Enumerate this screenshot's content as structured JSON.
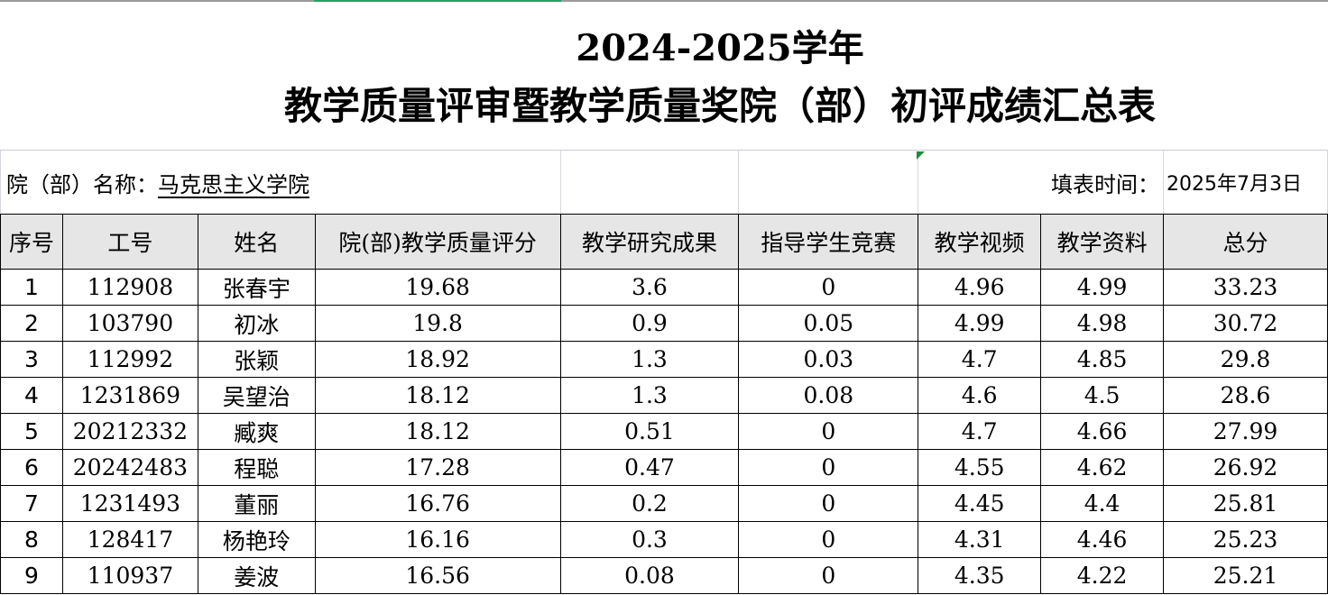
{
  "title_line1": "2024-2025学年",
  "title_line2": "教学质量评审暨教学质量奖院（部）初评成绩汇总表",
  "info": {
    "dept_label": "院（部）名称：",
    "dept_name": "马克思主义学院",
    "date_label": "填表时间：",
    "date_value": "2025年7月3日"
  },
  "headers": [
    "序号",
    "工号",
    "姓名",
    "院(部)教学质量评分",
    "教学研究成果",
    "指导学生竞赛",
    "教学视频",
    "教学资料",
    "总分"
  ],
  "rows": [
    [
      "1",
      "112908",
      "张春宇",
      "19.68",
      "3.6",
      "0",
      "4.96",
      "4.99",
      "33.23"
    ],
    [
      "2",
      "103790",
      "初冰",
      "19.8",
      "0.9",
      "0.05",
      "4.99",
      "4.98",
      "30.72"
    ],
    [
      "3",
      "112992",
      "张颖",
      "18.92",
      "1.3",
      "0.03",
      "4.7",
      "4.85",
      "29.8"
    ],
    [
      "4",
      "1231869",
      "吴望治",
      "18.12",
      "1.3",
      "0.08",
      "4.6",
      "4.5",
      "28.6"
    ],
    [
      "5",
      "20212332",
      "臧爽",
      "18.12",
      "0.51",
      "0",
      "4.7",
      "4.66",
      "27.99"
    ],
    [
      "6",
      "20242483",
      "程聪",
      "17.28",
      "0.47",
      "0",
      "4.55",
      "4.62",
      "26.92"
    ],
    [
      "7",
      "1231493",
      "董丽",
      "16.76",
      "0.2",
      "0",
      "4.45",
      "4.4",
      "25.81"
    ],
    [
      "8",
      "128417",
      "杨艳玲",
      "16.16",
      "0.3",
      "0",
      "4.31",
      "4.46",
      "25.23"
    ],
    [
      "9",
      "110937",
      "姜波",
      "16.56",
      "0.08",
      "0",
      "4.35",
      "4.22",
      "25.21"
    ]
  ]
}
